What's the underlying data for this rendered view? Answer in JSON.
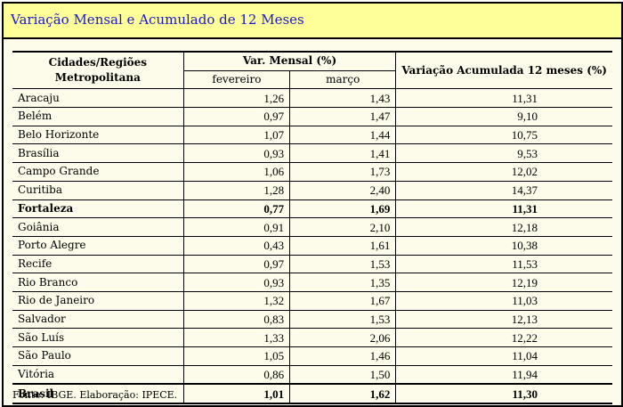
{
  "title": "Variação Mensal e Acumulado de 12 Meses",
  "headers": {
    "cidades": "Cidades/Regiões",
    "metropolitana": "Metropolitana",
    "var_mensal": "Var. Mensal (%)",
    "fevereiro": "fevereiro",
    "marco": "março",
    "acumulada": "Variação Acumulada 12 meses (%)"
  },
  "rows": [
    {
      "city": "Aracaju",
      "fev": "1,26",
      "mar": "1,43",
      "acum": "11,31"
    },
    {
      "city": "Belém",
      "fev": "0,97",
      "mar": "1,47",
      "acum": "9,10"
    },
    {
      "city": "Belo Horizonte",
      "fev": "1,07",
      "mar": "1,44",
      "acum": "10,75"
    },
    {
      "city": "Brasília",
      "fev": "0,93",
      "mar": "1,41",
      "acum": "9,53"
    },
    {
      "city": "Campo Grande",
      "fev": "1,06",
      "mar": "1,73",
      "acum": "12,02"
    },
    {
      "city": "Curitiba",
      "fev": "1,28",
      "mar": "2,40",
      "acum": "14,37"
    },
    {
      "city": "Fortaleza",
      "fev": "0,77",
      "mar": "1,69",
      "acum": "11,31"
    },
    {
      "city": "Goiânia",
      "fev": "0,91",
      "mar": "2,10",
      "acum": "12,18"
    },
    {
      "city": "Porto Alegre",
      "fev": "0,43",
      "mar": "1,61",
      "acum": "10,38"
    },
    {
      "city": "Recife",
      "fev": "0,97",
      "mar": "1,53",
      "acum": "11,53"
    },
    {
      "city": "Rio Branco",
      "fev": "0,93",
      "mar": "1,35",
      "acum": "12,19"
    },
    {
      "city": "Rio de Janeiro",
      "fev": "1,32",
      "mar": "1,67",
      "acum": "11,03"
    },
    {
      "city": "Salvador",
      "fev": "0,83",
      "mar": "1,53",
      "acum": "12,13"
    },
    {
      "city": "São Luís",
      "fev": "1,33",
      "mar": "2,06",
      "acum": "12,22"
    },
    {
      "city": "São Paulo",
      "fev": "1,05",
      "mar": "1,46",
      "acum": "11,04"
    },
    {
      "city": "Vitória",
      "fev": "0,86",
      "mar": "1,50",
      "acum": "11,94"
    }
  ],
  "total": {
    "city": "Brasil",
    "fev": "1,01",
    "mar": "1,62",
    "acum": "11,30"
  },
  "footnote": "Fonte: IBGE. Elaboração: IPECE.",
  "colors": {
    "title_bg": "#ffff99",
    "title_text": "#1a1acc",
    "panel_bg": "#fdfbe9"
  }
}
